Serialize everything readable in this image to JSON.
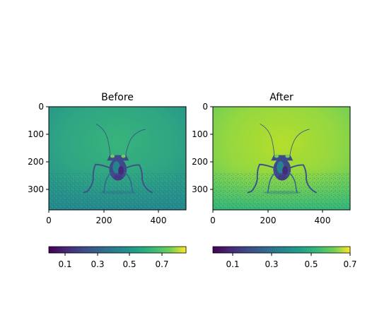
{
  "chart_data": [
    {
      "type": "heatmap",
      "title": "Before",
      "content": "grayscale photograph of a leaf-footed bug facing the viewer on a grainy surface, rendered with a viridis colormap",
      "colormap": "viridis",
      "xticks": [
        0,
        200,
        400
      ],
      "yticks": [
        0,
        100,
        200,
        300
      ],
      "xlim": [
        0,
        500
      ],
      "ylim": [
        375,
        0
      ],
      "colorbar": {
        "orientation": "horizontal",
        "range": [
          0.0,
          0.82
        ],
        "ticks": [
          0.1,
          0.3,
          0.5,
          0.7
        ],
        "tick_labels": [
          "0.1",
          "0.3",
          "0.5",
          "0.7"
        ]
      }
    },
    {
      "type": "heatmap",
      "title": "After",
      "content": "same photograph after contrast stretching, rendered with a viridis colormap",
      "colormap": "viridis",
      "xticks": [
        0,
        200,
        400
      ],
      "yticks": [
        0,
        100,
        200,
        300
      ],
      "xlim": [
        0,
        500
      ],
      "ylim": [
        375,
        0
      ],
      "colorbar": {
        "orientation": "horizontal",
        "range": [
          0.0,
          0.7
        ],
        "ticks": [
          0.1,
          0.3,
          0.5,
          0.7
        ],
        "tick_labels": [
          "0.1",
          "0.3",
          "0.5",
          "0.7"
        ]
      }
    }
  ]
}
